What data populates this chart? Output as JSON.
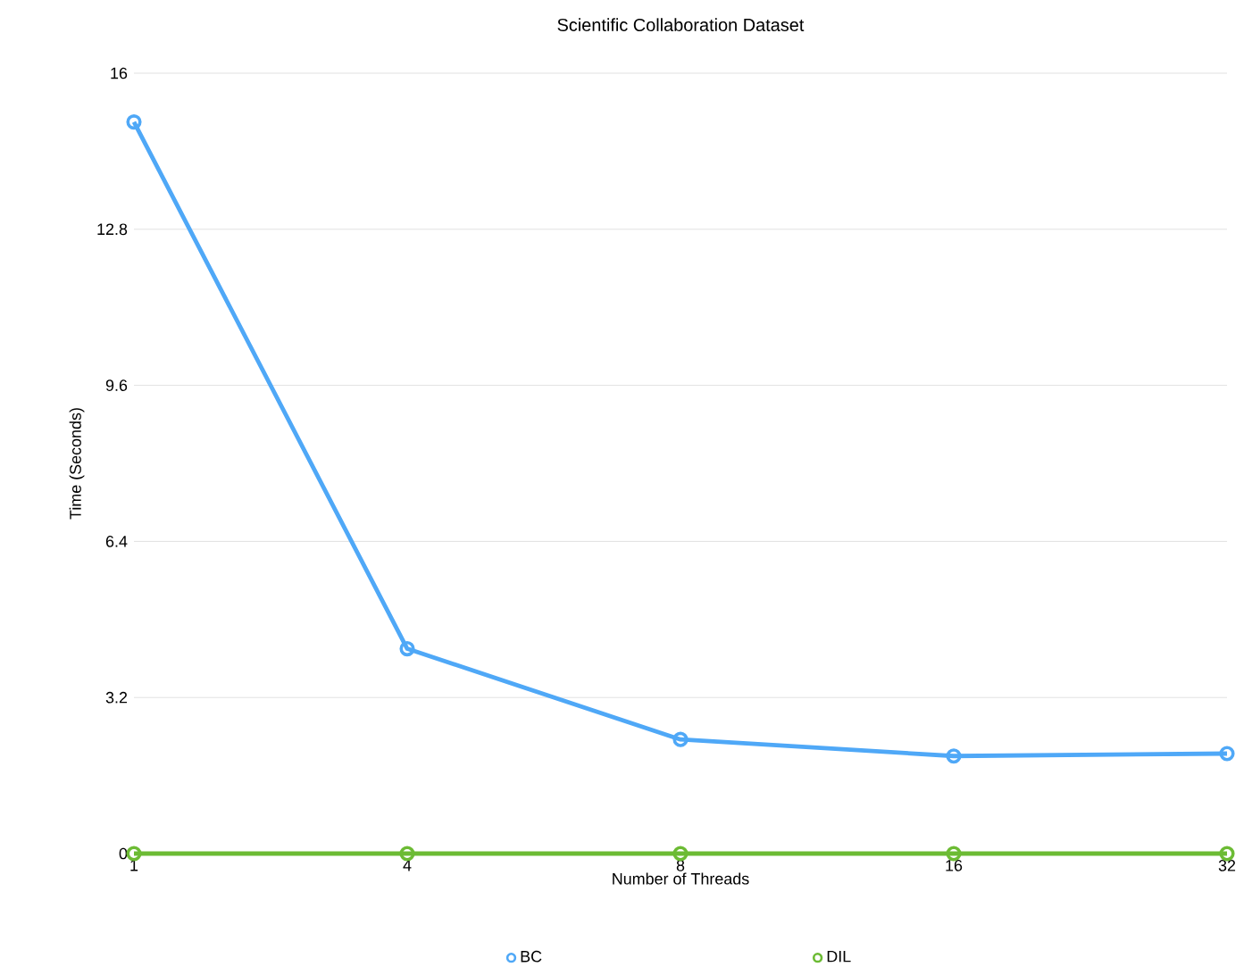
{
  "chart_data": {
    "type": "line",
    "title": "Scientific Collaboration Dataset",
    "xlabel": "Number of Threads",
    "ylabel": "Time (Seconds)",
    "categories": [
      "1",
      "4",
      "8",
      "16",
      "32"
    ],
    "series": [
      {
        "name": "BC",
        "color": "#4fa8f7",
        "values": [
          15.0,
          4.2,
          2.34,
          2.0,
          2.05
        ]
      },
      {
        "name": "DIL",
        "color": "#6cbb34",
        "values": [
          0,
          0,
          0,
          0,
          0
        ]
      }
    ],
    "ylim": [
      0,
      16
    ],
    "yticks": [
      0,
      3.2,
      6.4,
      9.6,
      12.8,
      16
    ],
    "grid": "y",
    "legend": "bottom",
    "marker": "circle",
    "line_style": "solid"
  }
}
